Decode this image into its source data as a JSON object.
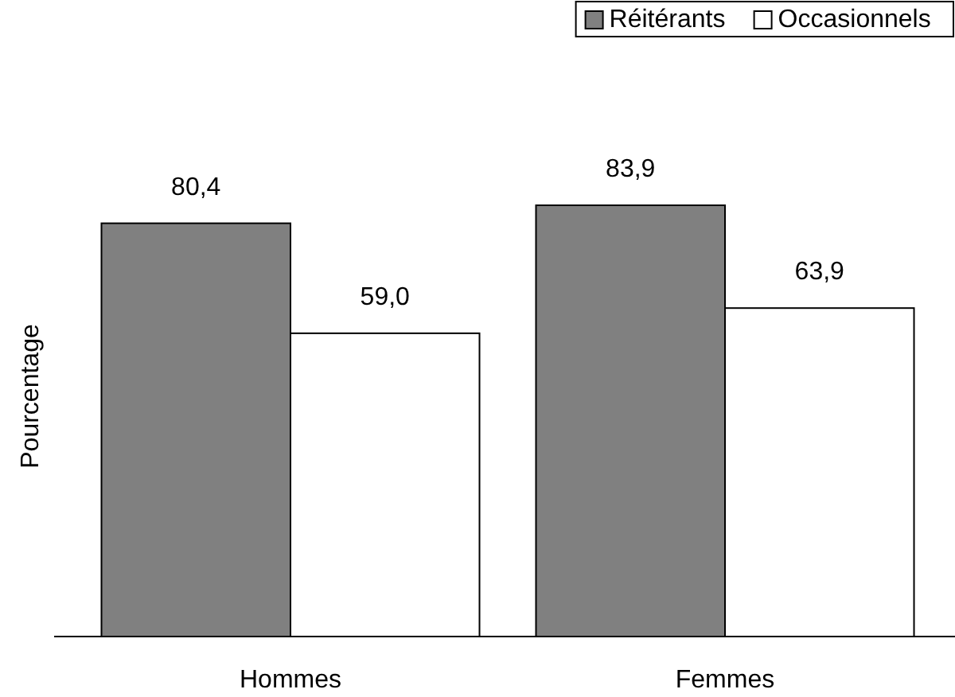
{
  "chart_data": {
    "type": "bar",
    "ylabel": "Pourcentage",
    "categories": [
      "Hommes",
      "Femmes"
    ],
    "legend": "top right",
    "series": [
      {
        "name": "Réitérants",
        "color": "#808080",
        "values": [
          80.4,
          83.9
        ],
        "value_labels": [
          "80,4",
          "83,9"
        ]
      },
      {
        "name": "Occasionnels",
        "color": "#ffffff",
        "values": [
          59.0,
          63.9
        ],
        "value_labels": [
          "59,0",
          "63,9"
        ]
      }
    ]
  }
}
